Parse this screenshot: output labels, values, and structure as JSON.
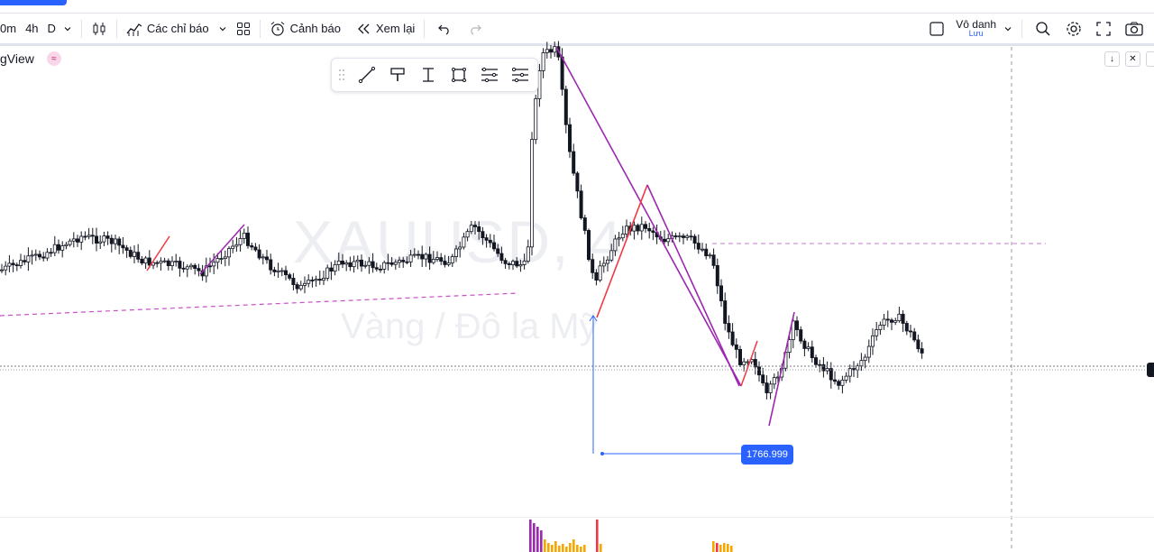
{
  "toolbar": {
    "interval_partial": "0m",
    "interval_4h": "4h",
    "interval_d": "D",
    "indicators_label": "Các chỉ báo",
    "alert_label": "Cảnh báo",
    "replay_label": "Xem lại",
    "layout_name": "Vô danh",
    "layout_sub": "Lưu"
  },
  "chart": {
    "logo_text": "gView",
    "symbol_watermark": "XAUUSD, 4",
    "description_watermark": "Vàng / Đô la Mỹ",
    "measure_value": "1766.999",
    "colors": {
      "up": "#ffffff",
      "down": "#131722",
      "trend": "#9c27b0",
      "counter": "#f23645",
      "measure": "#2962ff",
      "hline": "#ce93d8"
    }
  },
  "drawing_tools": [
    "line-tool",
    "brush-tool",
    "text-tool",
    "rectangle-tool",
    "fib-tool",
    "settings-tool"
  ]
}
